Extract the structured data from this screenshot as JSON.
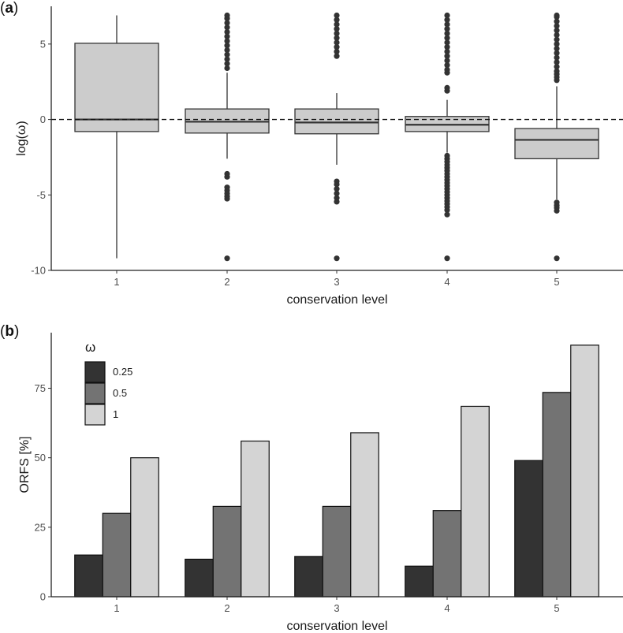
{
  "chart_data": [
    {
      "type": "boxplot",
      "panel_label": "a",
      "xlabel": "conservation level",
      "ylabel": "log(ω)",
      "ylim": [
        -10,
        7.5
      ],
      "yticks": [
        -10,
        -5,
        0,
        5
      ],
      "ytick_labels": [
        "-10",
        "-5",
        "0",
        "5"
      ],
      "reference_line": {
        "y": 0,
        "style": "dashed"
      },
      "categories": [
        "1",
        "2",
        "3",
        "4",
        "5"
      ],
      "boxes": [
        {
          "x": "1",
          "whisker_low": -9.2,
          "q1": -0.8,
          "median": 0.0,
          "q3": 5.05,
          "whisker_high": 6.9,
          "outliers": []
        },
        {
          "x": "2",
          "whisker_low": -2.6,
          "q1": -0.9,
          "median": -0.15,
          "q3": 0.7,
          "whisker_high": 3.1,
          "outliers": [
            3.4,
            3.7,
            4.0,
            4.3,
            4.6,
            4.9,
            5.2,
            5.5,
            5.8,
            6.1,
            6.4,
            6.7,
            6.9,
            -3.6,
            -3.8,
            -4.5,
            -4.7,
            -4.9,
            -5.1,
            -5.25,
            -9.2
          ]
        },
        {
          "x": "3",
          "whisker_low": -3.0,
          "q1": -0.95,
          "median": -0.2,
          "q3": 0.7,
          "whisker_high": 1.75,
          "outliers": [
            4.2,
            4.5,
            4.8,
            5.1,
            5.4,
            5.7,
            6.0,
            6.3,
            6.6,
            6.9,
            -4.1,
            -4.3,
            -4.6,
            -4.9,
            -5.2,
            -5.45,
            -9.2
          ]
        },
        {
          "x": "4",
          "whisker_low": -2.2,
          "q1": -0.8,
          "median": -0.35,
          "q3": 0.2,
          "whisker_high": 1.3,
          "outliers": [
            1.9,
            2.1,
            3.1,
            3.3,
            3.6,
            3.9,
            4.2,
            4.5,
            4.8,
            5.1,
            5.4,
            5.7,
            6.0,
            6.3,
            6.6,
            6.9,
            -2.4,
            -2.6,
            -2.8,
            -3.0,
            -3.2,
            -3.4,
            -3.6,
            -3.8,
            -4.0,
            -4.2,
            -4.4,
            -4.6,
            -4.8,
            -5.0,
            -5.2,
            -5.4,
            -5.6,
            -5.8,
            -6.0,
            -6.3,
            -9.2
          ]
        },
        {
          "x": "5",
          "whisker_low": -5.3,
          "q1": -2.6,
          "median": -1.35,
          "q3": -0.6,
          "whisker_high": 2.2,
          "outliers": [
            2.6,
            2.8,
            3.0,
            3.2,
            3.5,
            3.8,
            4.1,
            4.4,
            4.7,
            5.0,
            5.3,
            5.6,
            5.9,
            6.2,
            6.5,
            6.8,
            6.9,
            -5.5,
            -5.7,
            -5.85,
            -6.05,
            -9.2
          ]
        }
      ]
    },
    {
      "type": "bar",
      "panel_label": "b",
      "xlabel": "conservation level",
      "ylabel": "ORFS [%]",
      "ylim": [
        0,
        95
      ],
      "yticks": [
        0,
        25,
        50,
        75
      ],
      "ytick_labels": [
        "0",
        "25",
        "50",
        "75"
      ],
      "categories": [
        "1",
        "2",
        "3",
        "4",
        "5"
      ],
      "legend": {
        "title": "ω",
        "position": "top-left"
      },
      "series": [
        {
          "name": "0.25",
          "color": "#333333",
          "values": [
            15,
            13.5,
            14.5,
            11,
            49
          ]
        },
        {
          "name": "0.5",
          "color": "#737373",
          "values": [
            30,
            32.5,
            32.5,
            31,
            73.5
          ]
        },
        {
          "name": "1",
          "color": "#d4d4d4",
          "values": [
            50,
            56,
            59,
            68.5,
            90.5
          ]
        }
      ]
    }
  ]
}
